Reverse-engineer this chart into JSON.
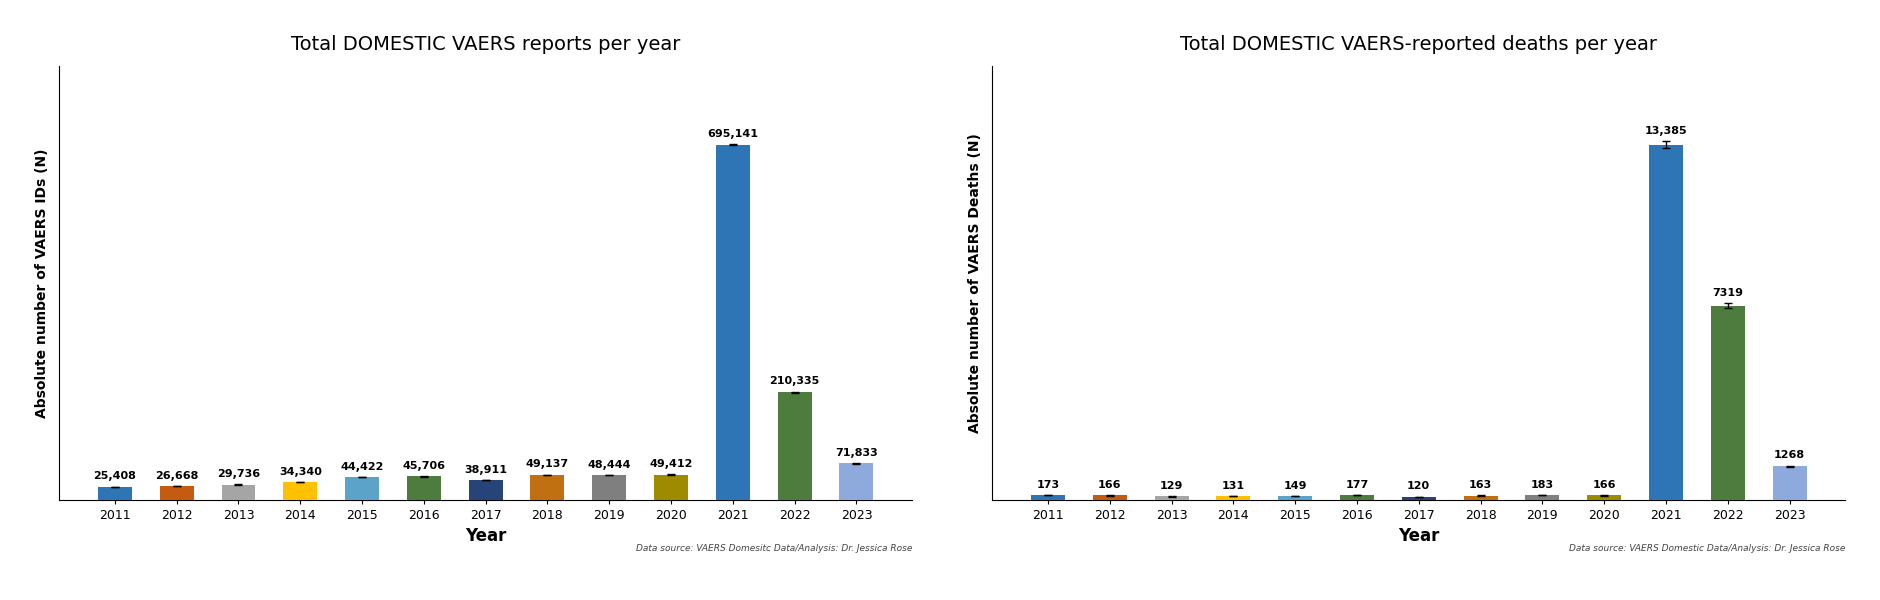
{
  "chart1": {
    "title": "Total DOMESTIC VAERS reports per year",
    "ylabel": "Absolute number of VAERS IDs (N)",
    "xlabel": "Year",
    "source": "Data source: VAERS Domesitc Data/Analysis: Dr. Jessica Rose",
    "years": [
      "2011",
      "2012",
      "2013",
      "2014",
      "2015",
      "2016",
      "2017",
      "2018",
      "2019",
      "2020",
      "2021",
      "2022",
      "2023"
    ],
    "values": [
      25408,
      26668,
      29736,
      34340,
      44422,
      45706,
      38911,
      49137,
      48444,
      49412,
      695141,
      210335,
      71833
    ],
    "labels": [
      "25,408",
      "26,668",
      "29,736",
      "34,340",
      "44,422",
      "45,706",
      "38,911",
      "49,137",
      "48,444",
      "49,412",
      "695,141",
      "210,335",
      "71,833"
    ],
    "colors": [
      "#2E75B6",
      "#C55A11",
      "#A5A5A5",
      "#FFC000",
      "#5BA3C9",
      "#4D7C3E",
      "#264478",
      "#C07010",
      "#7F7F7F",
      "#9E8B00",
      "#2E75B6",
      "#4D7C3E",
      "#8EA9DB"
    ],
    "error_bars": [
      400,
      400,
      400,
      400,
      400,
      400,
      400,
      400,
      400,
      400,
      1500,
      1500,
      800
    ],
    "ylim_factor": 1.22
  },
  "chart2": {
    "title": "Total DOMESTIC VAERS-reported deaths per year",
    "ylabel": "Absolute number of VAERS Deaths (N)",
    "xlabel": "Year",
    "source": "Data source: VAERS Domestic Data/Analysis: Dr. Jessica Rose",
    "years": [
      "2011",
      "2012",
      "2013",
      "2014",
      "2015",
      "2016",
      "2017",
      "2018",
      "2019",
      "2020",
      "2021",
      "2022",
      "2023"
    ],
    "values": [
      173,
      166,
      129,
      131,
      149,
      177,
      120,
      163,
      183,
      166,
      13385,
      7319,
      1268
    ],
    "labels": [
      "173",
      "166",
      "129",
      "131",
      "149",
      "177",
      "120",
      "163",
      "183",
      "166",
      "13,385",
      "7319",
      "1268"
    ],
    "colors": [
      "#2E75B6",
      "#C55A11",
      "#A5A5A5",
      "#FFC000",
      "#5BA3C9",
      "#4D7C3E",
      "#264478",
      "#C07010",
      "#7F7F7F",
      "#9E8B00",
      "#2E75B6",
      "#4D7C3E",
      "#8EA9DB"
    ],
    "error_bars": [
      4,
      4,
      4,
      4,
      4,
      4,
      4,
      4,
      4,
      4,
      120,
      80,
      25
    ],
    "ylim_factor": 1.22
  },
  "bg_color": "#FFFFFF",
  "title_fontsize": 14,
  "label_fontsize": 8,
  "tick_fontsize": 9,
  "ylabel_fontsize": 10,
  "xlabel_fontsize": 12,
  "source_fontsize": 6.5,
  "bar_width": 0.55
}
